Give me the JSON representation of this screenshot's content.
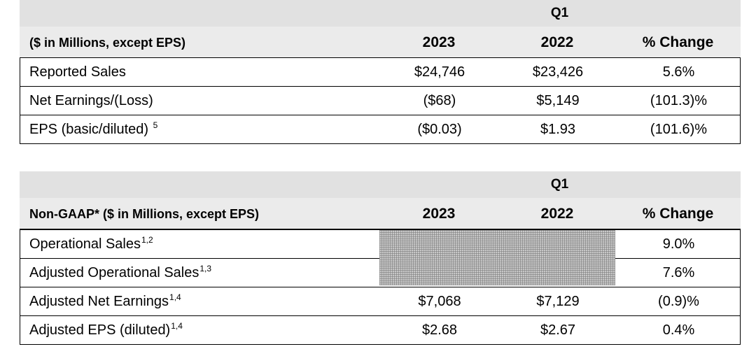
{
  "table1": {
    "period": "Q1",
    "header": {
      "label": "($ in Millions, except EPS)",
      "col1": "2023",
      "col2": "2022",
      "col3": "% Change"
    },
    "rows": [
      {
        "label": "Reported Sales",
        "sup": "",
        "v2023": "$24,746",
        "v2022": "$23,426",
        "change": "5.6%"
      },
      {
        "label": "Net Earnings/(Loss)",
        "sup": "",
        "v2023": "($68)",
        "v2022": "$5,149",
        "change": "(101.3)%"
      },
      {
        "label": "EPS (basic/diluted) ",
        "sup": "5",
        "v2023": "($0.03)",
        "v2022": "$1.93",
        "change": "(101.6)%"
      }
    ]
  },
  "table2": {
    "period": "Q1",
    "header": {
      "label": "Non-GAAP* ($ in Millions, except EPS)",
      "col1": "2023",
      "col2": "2022",
      "col3": "% Change"
    },
    "rows": [
      {
        "label": "Operational Sales",
        "sup": "1,2",
        "v2023": "",
        "v2022": "",
        "change": "9.0%"
      },
      {
        "label": "Adjusted Operational Sales",
        "sup": "1,3",
        "v2023": "",
        "v2022": "",
        "change": "7.6%"
      },
      {
        "label": "Adjusted Net Earnings",
        "sup": "1,4",
        "v2023": "$7,068",
        "v2022": "$7,129",
        "change": "(0.9)%"
      },
      {
        "label": "Adjusted EPS (diluted)",
        "sup": "1,4",
        "v2023": "$2.68",
        "v2022": "$2.67",
        "change": "0.4%"
      }
    ]
  }
}
